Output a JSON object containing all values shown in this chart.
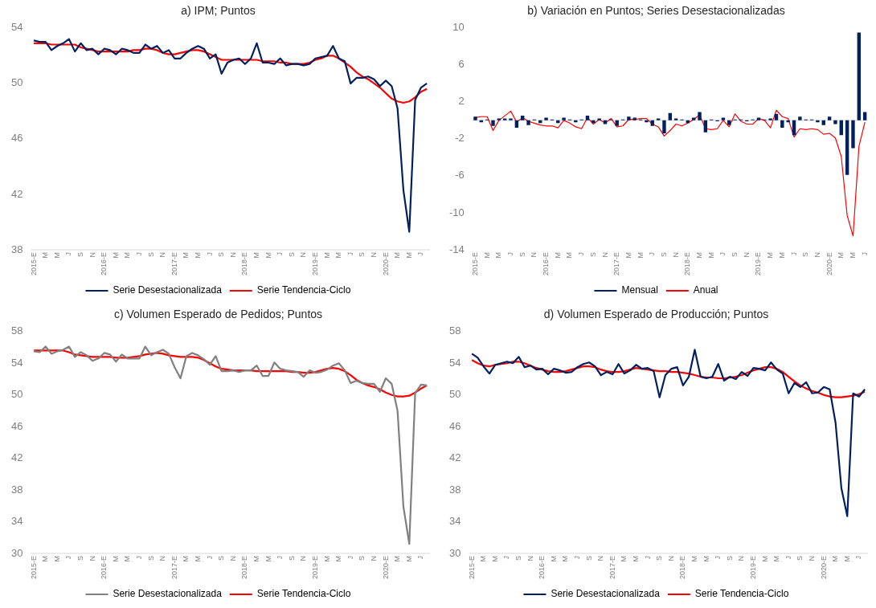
{
  "chart_data": [
    {
      "type": "line",
      "title": "a) IPM; Puntos",
      "categories": [
        "2015-E",
        null,
        "M",
        null,
        "M",
        null,
        "J",
        null,
        "S",
        null,
        "N",
        null,
        "2016-E",
        null,
        "M",
        null,
        "M",
        null,
        "J",
        null,
        "S",
        null,
        "N",
        null,
        "2017-E",
        null,
        "M",
        null,
        "M",
        null,
        "J",
        null,
        "S",
        null,
        "N",
        null,
        "2018-E",
        null,
        "M",
        null,
        "M",
        null,
        "J",
        null,
        "S",
        null,
        "N",
        null,
        "2019-E",
        null,
        "M",
        null,
        "M",
        null,
        "J",
        null,
        "S",
        null,
        "N",
        null,
        "2020-E",
        null,
        "M",
        null,
        "M",
        null,
        "J",
        null
      ],
      "series": [
        {
          "name": "Serie Desestacionalizada",
          "color": "#002060",
          "values": [
            53.1,
            53.0,
            53.0,
            52.4,
            52.7,
            52.9,
            53.2,
            52.3,
            52.9,
            52.4,
            52.5,
            52.1,
            52.5,
            52.4,
            52.1,
            52.5,
            52.4,
            52.2,
            52.2,
            52.8,
            52.5,
            52.7,
            52.2,
            52.4,
            51.8,
            51.8,
            52.2,
            52.5,
            52.7,
            52.5,
            51.8,
            52.1,
            50.7,
            51.5,
            51.7,
            51.8,
            51.4,
            51.8,
            52.9,
            51.5,
            51.5,
            51.4,
            51.8,
            51.3,
            51.4,
            51.4,
            51.3,
            51.4,
            51.8,
            51.9,
            52.0,
            52.7,
            51.8,
            51.6,
            50.0,
            50.4,
            50.4,
            50.5,
            50.3,
            49.8,
            50.2,
            49.8,
            48.2,
            42.3,
            39.3,
            48.8,
            49.7,
            50.0
          ]
        },
        {
          "name": "Serie Tendencia-Ciclo",
          "color": "#ff0000",
          "values": [
            52.9,
            52.9,
            52.9,
            52.8,
            52.8,
            52.8,
            52.8,
            52.8,
            52.6,
            52.5,
            52.4,
            52.3,
            52.3,
            52.3,
            52.3,
            52.3,
            52.3,
            52.4,
            52.4,
            52.5,
            52.5,
            52.4,
            52.2,
            52.1,
            52.1,
            52.2,
            52.3,
            52.4,
            52.4,
            52.3,
            52.1,
            51.9,
            51.7,
            51.7,
            51.7,
            51.7,
            51.7,
            51.7,
            51.7,
            51.6,
            51.6,
            51.6,
            51.5,
            51.5,
            51.4,
            51.4,
            51.4,
            51.5,
            51.7,
            51.8,
            52.0,
            52.0,
            51.8,
            51.5,
            51.2,
            50.8,
            50.5,
            50.3,
            50.0,
            49.7,
            49.3,
            48.9,
            48.7,
            48.6,
            48.7,
            49.0,
            49.4,
            49.6
          ]
        }
      ],
      "ylim": [
        38,
        54
      ],
      "yticks": [
        38,
        42,
        46,
        50,
        54
      ],
      "grid": false,
      "legend": "bottom",
      "marker": "none"
    },
    {
      "type": "bar",
      "title": "b) Variación en Puntos; Series Desestacionalizadas",
      "categories": [
        "2015-E",
        null,
        "M",
        null,
        "M",
        null,
        "J",
        null,
        "S",
        null,
        "N",
        null,
        "2016-E",
        null,
        "M",
        null,
        "M",
        null,
        "J",
        null,
        "S",
        null,
        "N",
        null,
        "2017-E",
        null,
        "M",
        null,
        "M",
        null,
        "J",
        null,
        "S",
        null,
        "N",
        null,
        "2018-E",
        null,
        "M",
        null,
        "M",
        null,
        "J",
        null,
        "S",
        null,
        "N",
        null,
        "2019-E",
        null,
        "M",
        null,
        "M",
        null,
        "J",
        null,
        "S",
        null,
        "N",
        null,
        "2020-E",
        null,
        "M",
        null,
        "M",
        null,
        "J"
      ],
      "series": [
        {
          "name": "Mensual",
          "type": "bar",
          "color": "#002060",
          "values": [
            0.4,
            -0.2,
            0.1,
            -0.6,
            0.2,
            0.2,
            0.2,
            -0.8,
            0.5,
            -0.5,
            0.1,
            -0.3,
            0.3,
            0.1,
            -0.3,
            0.3,
            0.1,
            -0.2,
            0.1,
            0.5,
            -0.3,
            0.2,
            -0.4,
            0.1,
            -0.6,
            0.1,
            0.4,
            0.3,
            0.1,
            -0.2,
            -0.6,
            0.2,
            -1.4,
            0.8,
            0.2,
            0.1,
            -0.3,
            0.3,
            0.9,
            -1.3,
            0.1,
            -0.1,
            0.3,
            -0.5,
            0.1,
            0.1,
            -0.1,
            0.1,
            0.3,
            0.1,
            0.2,
            0.7,
            -0.8,
            -0.2,
            -1.6,
            0.4,
            0.1,
            0.1,
            -0.2,
            -0.5,
            0.4,
            -0.4,
            -1.6,
            -5.9,
            -3.0,
            9.5,
            0.9
          ]
        },
        {
          "name": "Anual",
          "type": "line",
          "color": "#ff0000",
          "values": [
            0.3,
            0.4,
            0.4,
            -1.1,
            0.0,
            0.5,
            1.0,
            -0.2,
            0.3,
            -0.1,
            -0.3,
            -0.5,
            -0.6,
            -0.6,
            -0.8,
            0.0,
            -0.3,
            -0.7,
            -0.9,
            0.3,
            -0.4,
            0.1,
            -0.3,
            0.2,
            -0.7,
            -0.6,
            0.1,
            0.1,
            0.2,
            0.2,
            -0.4,
            -0.7,
            -1.7,
            -1.1,
            -0.4,
            -0.6,
            -0.3,
            0.1,
            0.6,
            -0.9,
            -1.0,
            -0.9,
            0.0,
            -0.7,
            0.7,
            -0.1,
            -0.4,
            -0.4,
            0.2,
            0.0,
            -0.8,
            1.1,
            0.4,
            0.2,
            -1.8,
            -0.9,
            -1.0,
            -0.9,
            -1.0,
            -1.5,
            -1.4,
            -1.9,
            -3.9,
            -10.3,
            -12.5,
            -2.8,
            -0.2
          ]
        }
      ],
      "ylim": [
        -14,
        10
      ],
      "yticks": [
        -14,
        -10,
        -6,
        -2,
        2,
        6,
        10
      ],
      "grid": false,
      "legend": "bottom",
      "marker": "none"
    },
    {
      "type": "line",
      "title": "c) Volumen Esperado de Pedidos; Puntos",
      "categories": [
        "2015-E",
        null,
        "M",
        null,
        "M",
        null,
        "J",
        null,
        "S",
        null,
        "N",
        null,
        "2016-E",
        null,
        "M",
        null,
        "M",
        null,
        "J",
        null,
        "S",
        null,
        "N",
        null,
        "2017-E",
        null,
        "M",
        null,
        "M",
        null,
        "J",
        null,
        "S",
        null,
        "N",
        null,
        "2018-E",
        null,
        "M",
        null,
        "M",
        null,
        "J",
        null,
        "S",
        null,
        "N",
        null,
        "2019-E",
        null,
        "M",
        null,
        "M",
        null,
        "J",
        null,
        "S",
        null,
        "N",
        null,
        "2020-E",
        null,
        "M",
        null,
        "M",
        null,
        "J",
        null
      ],
      "series": [
        {
          "name": "Serie Desestacionalizada",
          "color": "#808080",
          "values": [
            55.5,
            55.4,
            56.1,
            55.2,
            55.5,
            55.7,
            56.1,
            54.8,
            55.4,
            55.0,
            54.3,
            54.6,
            55.3,
            55.1,
            54.2,
            55.1,
            54.6,
            54.6,
            54.6,
            56.1,
            55.0,
            55.4,
            55.7,
            55.2,
            53.5,
            52.1,
            54.9,
            55.3,
            55.0,
            54.5,
            53.8,
            54.9,
            53.0,
            53.0,
            53.1,
            52.9,
            53.1,
            53.1,
            53.7,
            52.4,
            52.4,
            54.1,
            53.3,
            53.1,
            53.0,
            52.9,
            52.3,
            53.1,
            52.8,
            52.9,
            53.2,
            53.7,
            54.0,
            53.1,
            51.5,
            51.8,
            51.5,
            51.4,
            51.4,
            50.4,
            52.1,
            51.4,
            48.0,
            35.9,
            31.2,
            50.2,
            51.3,
            51.2
          ]
        },
        {
          "name": "Serie Tendencia-Ciclo",
          "color": "#ff0000",
          "values": [
            55.6,
            55.6,
            55.6,
            55.6,
            55.6,
            55.6,
            55.4,
            55.1,
            55.0,
            54.9,
            54.8,
            54.8,
            54.8,
            54.8,
            54.7,
            54.7,
            54.7,
            54.8,
            54.9,
            55.1,
            55.2,
            55.3,
            55.2,
            55.0,
            54.9,
            54.8,
            54.8,
            54.8,
            54.7,
            54.4,
            54.0,
            53.6,
            53.3,
            53.2,
            53.1,
            53.1,
            53.1,
            53.1,
            53.0,
            53.0,
            53.0,
            53.0,
            53.0,
            53.0,
            52.9,
            52.9,
            52.8,
            52.8,
            52.9,
            53.1,
            53.3,
            53.4,
            53.3,
            53.0,
            52.5,
            51.9,
            51.5,
            51.2,
            51.0,
            50.7,
            50.3,
            50.0,
            49.8,
            49.8,
            49.9,
            50.3,
            50.8,
            51.2
          ]
        }
      ],
      "ylim": [
        30,
        58
      ],
      "yticks": [
        30,
        34,
        38,
        42,
        46,
        50,
        54,
        58
      ],
      "grid": false,
      "legend": "bottom",
      "marker": "none"
    },
    {
      "type": "line",
      "title": "d) Volumen Esperado de Producción; Puntos",
      "categories": [
        "2015-E",
        null,
        "M",
        null,
        "M",
        null,
        "J",
        null,
        "S",
        null,
        "N",
        null,
        "2016-E",
        null,
        "M",
        null,
        "M",
        null,
        "J",
        null,
        "S",
        null,
        "N",
        null,
        "2017-E",
        null,
        "M",
        null,
        "M",
        null,
        "J",
        null,
        "S",
        null,
        "N",
        null,
        "2018-E",
        null,
        "M",
        null,
        "M",
        null,
        "J",
        null,
        "S",
        null,
        "N",
        null,
        "2019-E",
        null,
        "M",
        null,
        "M",
        null,
        "J",
        null,
        "S",
        null,
        "N",
        null,
        "2020-E",
        null,
        "M",
        null,
        "M",
        null,
        "J",
        null
      ],
      "series": [
        {
          "name": "Serie Desestacionalizada",
          "color": "#002060",
          "values": [
            55.2,
            54.7,
            53.6,
            52.7,
            53.8,
            54.0,
            54.2,
            54.0,
            54.8,
            53.5,
            53.7,
            53.2,
            53.3,
            52.6,
            53.3,
            53.1,
            52.8,
            52.9,
            53.5,
            53.9,
            54.1,
            53.6,
            52.5,
            52.9,
            52.6,
            53.9,
            52.7,
            53.1,
            53.8,
            53.3,
            53.4,
            53.0,
            49.7,
            52.5,
            53.3,
            53.5,
            51.2,
            52.3,
            55.7,
            52.3,
            52.1,
            52.3,
            53.9,
            51.8,
            52.3,
            52.0,
            52.9,
            52.4,
            53.4,
            53.3,
            53.1,
            54.1,
            53.2,
            52.7,
            50.2,
            51.5,
            51.0,
            51.6,
            50.2,
            50.3,
            51.0,
            50.7,
            46.5,
            38.2,
            34.7,
            50.2,
            49.8,
            50.7
          ]
        },
        {
          "name": "Serie Tendencia-Ciclo",
          "color": "#ff0000",
          "values": [
            54.4,
            54.0,
            53.7,
            53.6,
            53.8,
            53.9,
            54.0,
            54.2,
            54.2,
            54.0,
            53.7,
            53.4,
            53.2,
            53.0,
            52.9,
            52.9,
            53.0,
            53.2,
            53.4,
            53.6,
            53.6,
            53.5,
            53.2,
            53.0,
            52.9,
            52.9,
            53.0,
            53.2,
            53.4,
            53.3,
            53.2,
            53.1,
            53.0,
            53.0,
            52.9,
            52.9,
            52.8,
            52.7,
            52.5,
            52.3,
            52.2,
            52.2,
            52.1,
            52.1,
            52.2,
            52.3,
            52.5,
            52.8,
            53.1,
            53.3,
            53.5,
            53.5,
            53.3,
            52.9,
            52.3,
            51.7,
            51.2,
            50.8,
            50.5,
            50.3,
            50.0,
            49.8,
            49.7,
            49.7,
            49.8,
            49.9,
            50.1,
            50.4
          ]
        }
      ],
      "ylim": [
        30,
        58
      ],
      "yticks": [
        30,
        34,
        38,
        42,
        46,
        50,
        54,
        58
      ],
      "grid": false,
      "legend": "bottom",
      "marker": "none"
    }
  ]
}
